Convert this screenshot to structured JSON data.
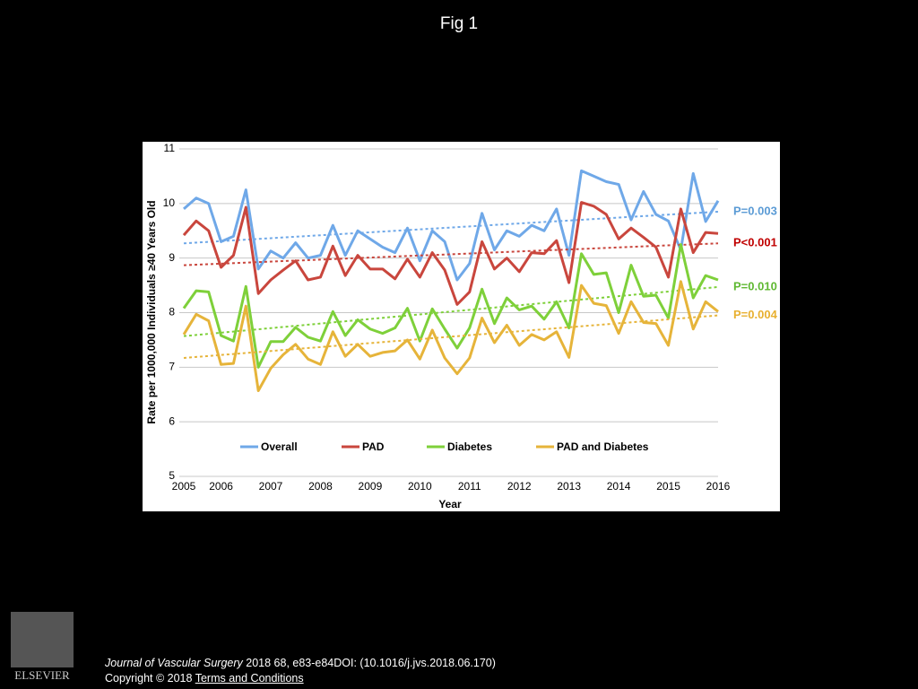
{
  "header": {
    "title": "Fig 1"
  },
  "chart_data": {
    "type": "line",
    "ylabel": "Rate per 1000,000 Individuals ≥40 Years Old",
    "xlabel": "Year",
    "categories": [
      "2005",
      null,
      null,
      "2006",
      null,
      null,
      null,
      "2007",
      null,
      null,
      null,
      "2008",
      null,
      null,
      null,
      "2009",
      null,
      null,
      null,
      "2010",
      null,
      null,
      null,
      "2011",
      null,
      null,
      null,
      "2012",
      null,
      null,
      null,
      "2013",
      null,
      null,
      null,
      "2014",
      null,
      null,
      null,
      "2015",
      null,
      null,
      null,
      "2016"
    ],
    "ylim": [
      5,
      11
    ],
    "yticks": [
      5,
      6,
      7,
      8,
      9,
      10,
      11
    ],
    "grid": true,
    "legend": "bottom",
    "series": [
      {
        "name": "Overall",
        "color": "#6fa8e8",
        "label_color": "#5b9bd5",
        "annotation": "P=0.003",
        "trend": [
          9.27,
          9.85
        ],
        "values": [
          9.9,
          10.1,
          10.0,
          9.3,
          9.4,
          10.25,
          8.8,
          9.13,
          9.0,
          9.28,
          9.0,
          9.05,
          9.6,
          9.05,
          9.5,
          9.35,
          9.2,
          9.1,
          9.55,
          8.95,
          9.5,
          9.3,
          8.6,
          8.9,
          9.82,
          9.15,
          9.5,
          9.4,
          9.6,
          9.5,
          9.9,
          9.05,
          10.6,
          10.5,
          10.4,
          10.35,
          9.7,
          10.22,
          9.8,
          9.68,
          9.15,
          10.55,
          9.67,
          10.05
        ]
      },
      {
        "name": "PAD",
        "color": "#c9463d",
        "label_color": "#c00000",
        "annotation": "P<0.001",
        "trend": [
          8.87,
          9.27
        ],
        "values": [
          9.42,
          9.68,
          9.5,
          8.83,
          9.05,
          9.93,
          8.35,
          8.6,
          8.78,
          8.95,
          8.6,
          8.65,
          9.22,
          8.68,
          9.05,
          8.8,
          8.8,
          8.62,
          8.98,
          8.65,
          9.1,
          8.78,
          8.15,
          8.38,
          9.3,
          8.8,
          9.0,
          8.75,
          9.1,
          9.08,
          9.32,
          8.55,
          10.02,
          9.95,
          9.8,
          9.35,
          9.55,
          9.38,
          9.2,
          8.65,
          9.9,
          9.1,
          9.47,
          9.45
        ]
      },
      {
        "name": "Diabetes",
        "color": "#7ed03a",
        "label_color": "#5fb832",
        "annotation": "P=0.010",
        "trend": [
          7.57,
          8.47
        ],
        "values": [
          8.08,
          8.4,
          8.38,
          7.58,
          7.48,
          8.48,
          7.0,
          7.47,
          7.47,
          7.73,
          7.55,
          7.48,
          8.02,
          7.58,
          7.87,
          7.7,
          7.62,
          7.72,
          8.08,
          7.48,
          8.07,
          7.7,
          7.35,
          7.72,
          8.43,
          7.8,
          8.27,
          8.05,
          8.12,
          7.88,
          8.2,
          7.72,
          9.08,
          8.7,
          8.73,
          8.0,
          8.87,
          8.3,
          8.32,
          7.9,
          9.25,
          8.27,
          8.68,
          8.6
        ]
      },
      {
        "name": "PAD and Diabetes",
        "color": "#e6b43a",
        "label_color": "#e8b030",
        "annotation": "P=0.004",
        "trend": [
          7.17,
          7.95
        ],
        "values": [
          7.6,
          7.97,
          7.85,
          7.05,
          7.07,
          8.12,
          6.57,
          6.98,
          7.23,
          7.42,
          7.15,
          7.05,
          7.65,
          7.2,
          7.42,
          7.2,
          7.27,
          7.3,
          7.5,
          7.15,
          7.68,
          7.17,
          6.88,
          7.17,
          7.9,
          7.45,
          7.77,
          7.4,
          7.6,
          7.5,
          7.65,
          7.18,
          8.5,
          8.17,
          8.13,
          7.62,
          8.2,
          7.82,
          7.8,
          7.4,
          8.57,
          7.7,
          8.2,
          8.02
        ]
      }
    ]
  },
  "footer": {
    "logo": "ELSEVIER",
    "journal": "Journal of Vascular Surgery",
    "citation": " 2018 68, e83-e84DOI: (10.1016/j.jvs.2018.06.170)",
    "copyright": "Copyright © 2018 ",
    "link": " Terms and Conditions"
  }
}
